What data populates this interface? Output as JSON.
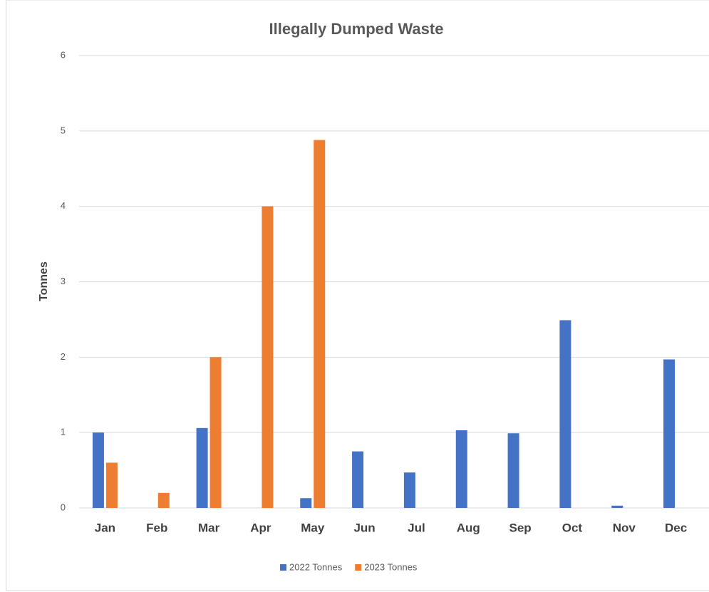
{
  "chart_data": {
    "type": "bar",
    "title": "Illegally Dumped Waste",
    "y_label": "Tonnes",
    "categories": [
      "Jan",
      "Feb",
      "Mar",
      "Apr",
      "May",
      "Jun",
      "Jul",
      "Aug",
      "Sep",
      "Oct",
      "Nov",
      "Dec"
    ],
    "series": [
      {
        "name": "2022 Tonnes",
        "color": "#4472c4",
        "values": [
          1.0,
          null,
          1.06,
          null,
          0.13,
          0.75,
          0.47,
          1.03,
          0.99,
          2.49,
          0.03,
          1.97
        ]
      },
      {
        "name": "2023 Tonnes",
        "color": "#ed7d31",
        "values": [
          0.6,
          0.2,
          2.0,
          4.0,
          4.88,
          null,
          null,
          null,
          null,
          null,
          null,
          null
        ]
      }
    ],
    "ylim": [
      0,
      6
    ],
    "yticks": [
      0,
      1,
      2,
      3,
      4,
      5,
      6
    ],
    "grid": true,
    "legend": "bottom"
  }
}
